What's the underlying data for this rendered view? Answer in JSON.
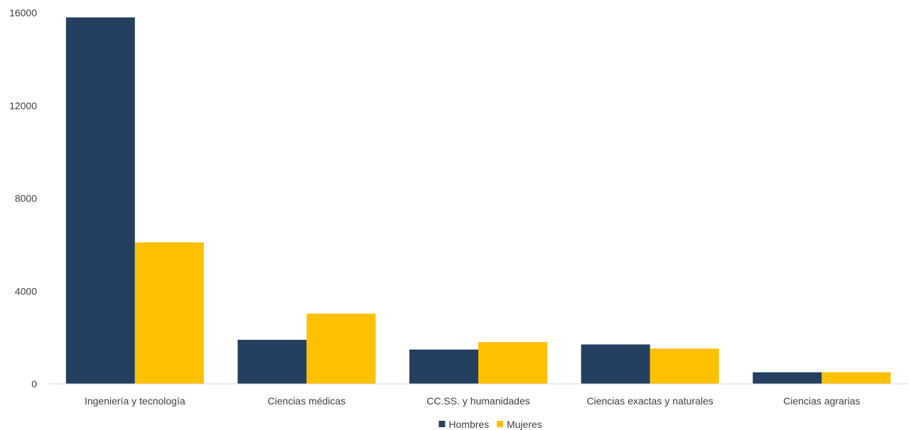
{
  "chart_data": {
    "type": "bar",
    "title": "",
    "xlabel": "",
    "ylabel": "",
    "ylim": [
      0,
      16000
    ],
    "yticks": [
      0,
      4000,
      8000,
      12000,
      16000
    ],
    "grid": false,
    "legend_position": "bottom",
    "categories": [
      "Ingeniería y tecnología",
      "Ciencias médicas",
      "CC.SS. y humanidades",
      "Ciencias exactas y naturales",
      "Ciencias agrarias"
    ],
    "series": [
      {
        "name": "Hombres",
        "color": "#243F60",
        "values": [
          15800,
          1900,
          1480,
          1700,
          500
        ]
      },
      {
        "name": "Mujeres",
        "color": "#FFC000",
        "values": [
          6100,
          3030,
          1800,
          1520,
          500
        ]
      }
    ]
  }
}
